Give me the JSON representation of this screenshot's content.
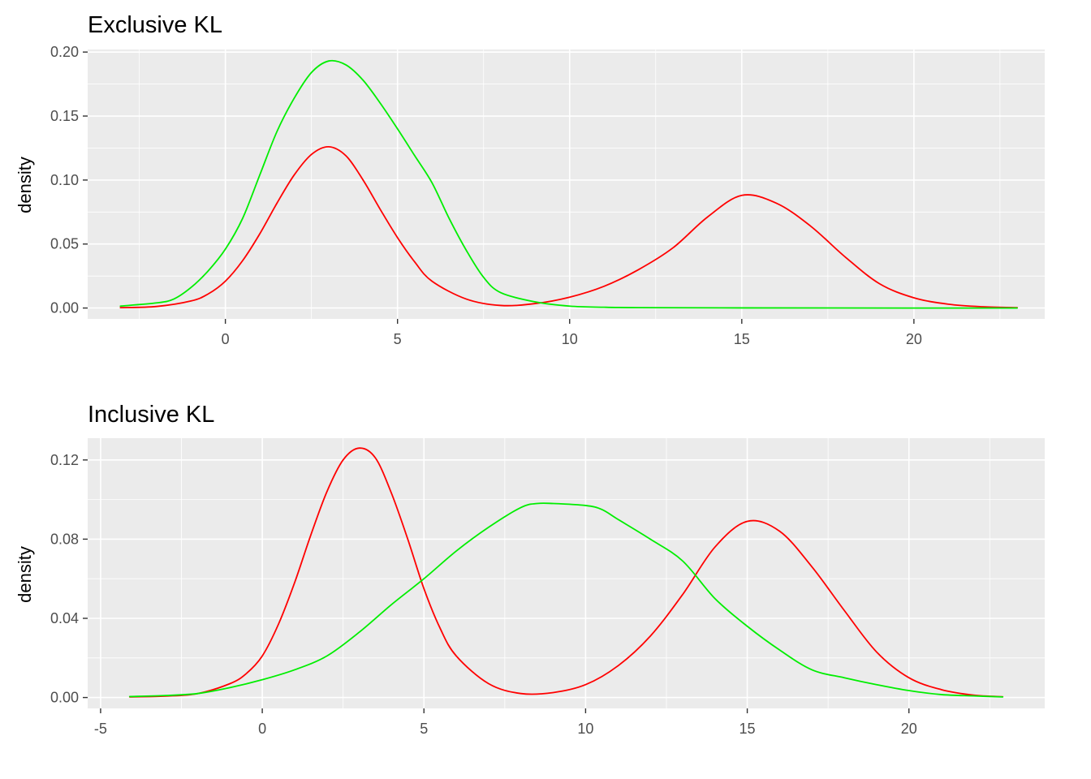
{
  "chart_data": [
    {
      "type": "line",
      "title": "Exclusive KL",
      "xlabel": "",
      "ylabel": "density",
      "xlim": [
        -4.0,
        23.8
      ],
      "ylim": [
        -0.0085,
        0.202
      ],
      "x_ticks": [
        0,
        5,
        10,
        15,
        20
      ],
      "x_tick_labels": [
        "0",
        "5",
        "10",
        "15",
        "20"
      ],
      "y_ticks": [
        0,
        0.05,
        0.1,
        0.15,
        0.2
      ],
      "y_tick_labels": [
        "0.00",
        "0.05",
        "0.10",
        "0.15",
        "0.20"
      ],
      "grid": true,
      "series": [
        {
          "color": "#FF0000",
          "x": [
            -3.05,
            -2.0,
            -1.0,
            -0.5,
            0.0,
            0.5,
            1.0,
            1.5,
            2.0,
            2.5,
            3.0,
            3.5,
            4.0,
            4.5,
            5.0,
            5.5,
            6.0,
            7.0,
            8.0,
            9.0,
            10.0,
            11.0,
            12.0,
            13.0,
            14.0,
            15.0,
            16.0,
            17.0,
            18.0,
            19.0,
            20.0,
            21.0,
            22.0,
            23.0
          ],
          "y": [
            0.0003,
            0.0012,
            0.0055,
            0.011,
            0.021,
            0.037,
            0.058,
            0.082,
            0.104,
            0.12,
            0.126,
            0.119,
            0.1,
            0.077,
            0.055,
            0.036,
            0.021,
            0.007,
            0.002,
            0.0035,
            0.0085,
            0.017,
            0.03,
            0.047,
            0.071,
            0.088,
            0.082,
            0.064,
            0.04,
            0.019,
            0.008,
            0.003,
            0.001,
            0.0003
          ]
        },
        {
          "color": "#00EE00",
          "x": [
            -3.05,
            -2.0,
            -1.5,
            -1.0,
            -0.5,
            0.0,
            0.5,
            1.0,
            1.5,
            2.0,
            2.5,
            3.0,
            3.5,
            4.0,
            4.5,
            5.0,
            5.5,
            6.0,
            6.5,
            7.0,
            7.5,
            8.0,
            9.0,
            10.0,
            11.0,
            12.0,
            15.0,
            20.0,
            23.0
          ],
          "y": [
            0.0015,
            0.004,
            0.007,
            0.016,
            0.029,
            0.046,
            0.07,
            0.104,
            0.138,
            0.164,
            0.184,
            0.193,
            0.19,
            0.178,
            0.16,
            0.14,
            0.119,
            0.098,
            0.07,
            0.045,
            0.024,
            0.012,
            0.0048,
            0.0015,
            0.0006,
            0.0003,
            0.0001,
            0.0,
            0.0
          ]
        }
      ]
    },
    {
      "type": "line",
      "title": "Inclusive KL",
      "xlabel": "",
      "ylabel": "density",
      "xlim": [
        -5.4,
        24.2
      ],
      "ylim": [
        -0.0055,
        0.131
      ],
      "x_ticks": [
        -5,
        0,
        5,
        10,
        15,
        20
      ],
      "x_tick_labels": [
        "-5",
        "0",
        "5",
        "10",
        "15",
        "20"
      ],
      "y_ticks": [
        0,
        0.04,
        0.08,
        0.12
      ],
      "y_tick_labels": [
        "0.00",
        "0.04",
        "0.08",
        "0.12"
      ],
      "grid": true,
      "series": [
        {
          "color": "#FF0000",
          "x": [
            -4.1,
            -3.0,
            -2.0,
            -1.0,
            -0.5,
            0.0,
            0.5,
            1.0,
            1.5,
            2.0,
            2.5,
            3.0,
            3.5,
            4.0,
            4.5,
            5.0,
            5.5,
            6.0,
            7.0,
            8.0,
            9.0,
            10.0,
            11.0,
            12.0,
            13.0,
            14.0,
            15.0,
            16.0,
            17.0,
            18.0,
            19.0,
            20.0,
            21.0,
            22.0,
            22.9
          ],
          "y": [
            0.0003,
            0.0007,
            0.002,
            0.007,
            0.012,
            0.021,
            0.037,
            0.058,
            0.082,
            0.104,
            0.12,
            0.126,
            0.121,
            0.103,
            0.08,
            0.055,
            0.035,
            0.021,
            0.007,
            0.002,
            0.0025,
            0.0065,
            0.016,
            0.031,
            0.052,
            0.076,
            0.089,
            0.084,
            0.066,
            0.044,
            0.023,
            0.01,
            0.004,
            0.0012,
            0.0004
          ]
        },
        {
          "color": "#00EE00",
          "x": [
            -4.1,
            -3.0,
            -2.0,
            -1.0,
            0.0,
            1.0,
            2.0,
            3.0,
            4.0,
            5.0,
            6.0,
            7.0,
            8.0,
            8.5,
            9.0,
            10.0,
            10.5,
            11.0,
            12.0,
            13.0,
            14.0,
            15.0,
            16.0,
            17.0,
            18.0,
            19.0,
            20.0,
            21.0,
            22.0,
            22.9
          ],
          "y": [
            0.0005,
            0.001,
            0.002,
            0.005,
            0.009,
            0.014,
            0.021,
            0.033,
            0.047,
            0.06,
            0.074,
            0.086,
            0.096,
            0.098,
            0.098,
            0.097,
            0.095,
            0.09,
            0.08,
            0.069,
            0.05,
            0.036,
            0.024,
            0.014,
            0.01,
            0.0065,
            0.0035,
            0.0015,
            0.0008,
            0.0003
          ]
        }
      ]
    }
  ]
}
